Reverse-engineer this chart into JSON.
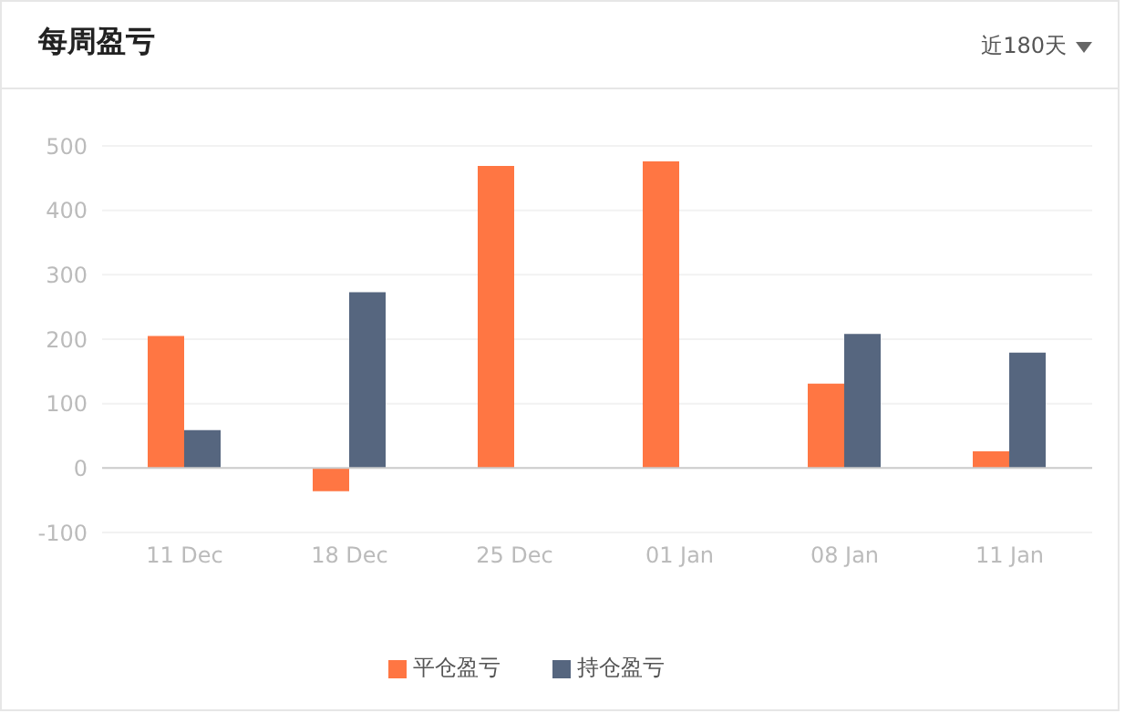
{
  "chart_data": {
    "type": "bar",
    "title": "每周盈亏",
    "annotations": [
      "近180天"
    ],
    "categories": [
      "11 Dec",
      "18 Dec",
      "25 Dec",
      "01 Jan",
      "08 Jan",
      "11 Jan"
    ],
    "series": [
      {
        "name": "平仓盈亏",
        "color": "#ff7643",
        "values": [
          205,
          -36,
          469,
          476,
          131,
          26
        ]
      },
      {
        "name": "持仓盈亏",
        "color": "#56667f",
        "values": [
          59,
          273,
          null,
          null,
          208,
          179
        ]
      }
    ],
    "ylim": [
      -100,
      500
    ],
    "yticks": [
      -100,
      0,
      100,
      200,
      300,
      400,
      500
    ],
    "grid": "y",
    "legend": "bottom",
    "ref_lines": [
      {
        "axis": "y",
        "value": 0,
        "color": "#cccccc"
      }
    ]
  }
}
